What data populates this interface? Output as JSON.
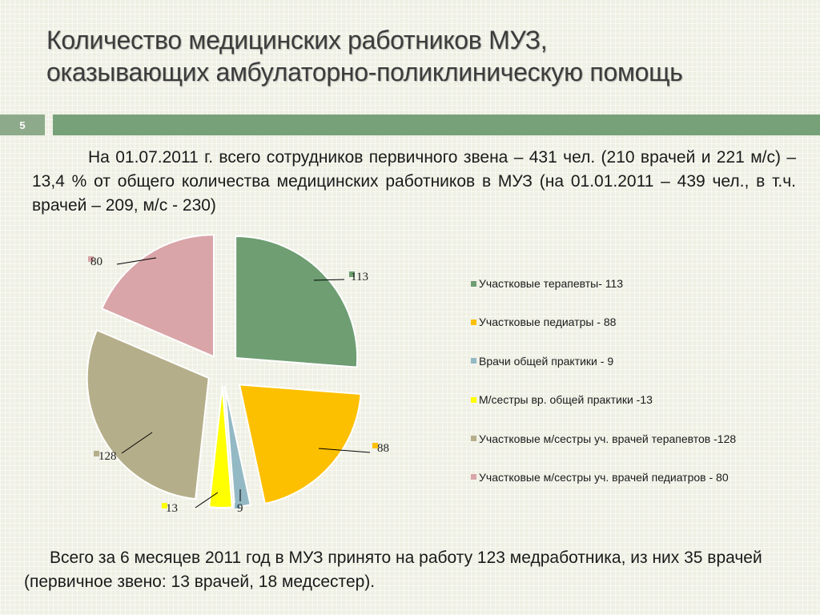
{
  "slide": {
    "title_line1": "Количество медицинских работников МУЗ,",
    "title_line2": "оказывающих амбулаторно-поликлиническую помощь",
    "slide_number": "5",
    "intro_text": "На 01.07.2011 г. всего сотрудников первичного звена – 431 чел. (210 врачей и 221 м/с) – 13,4 % от общего количества медицинских работников в МУЗ (на 01.01.2011 – 439 чел., в т.ч. врачей – 209, м/с - 230)",
    "footer_text": "Всего за 6 месяцев 2011 год в МУЗ принято на работу 123 медработника, из них 35 врачей (первичное звено: 13 врачей, 18 медсестер)."
  },
  "colors": {
    "accent_green": "#77a279",
    "slide_number_box": "#8dab8a"
  },
  "chart_data": {
    "type": "pie",
    "exploded": true,
    "legend_position": "right",
    "series": [
      {
        "values": [
          113,
          88,
          9,
          13,
          128,
          80
        ],
        "value_labels": [
          "113",
          "88",
          "9",
          "13",
          "128",
          "80"
        ],
        "categories": [
          "Участковые терапевты- 113",
          "Участковые педиатры - 88",
          "Врачи общей практики - 9",
          "М/сестры вр. общей практики -13",
          "Участковые м/сестры уч. врачей терапевтов -128",
          "Участковые м/сестры уч. врачей педиатров - 80"
        ],
        "colors": [
          "#6e9e72",
          "#fdc000",
          "#93b9c4",
          "#ffff00",
          "#b5ae8a",
          "#d9a5a8"
        ]
      }
    ]
  }
}
